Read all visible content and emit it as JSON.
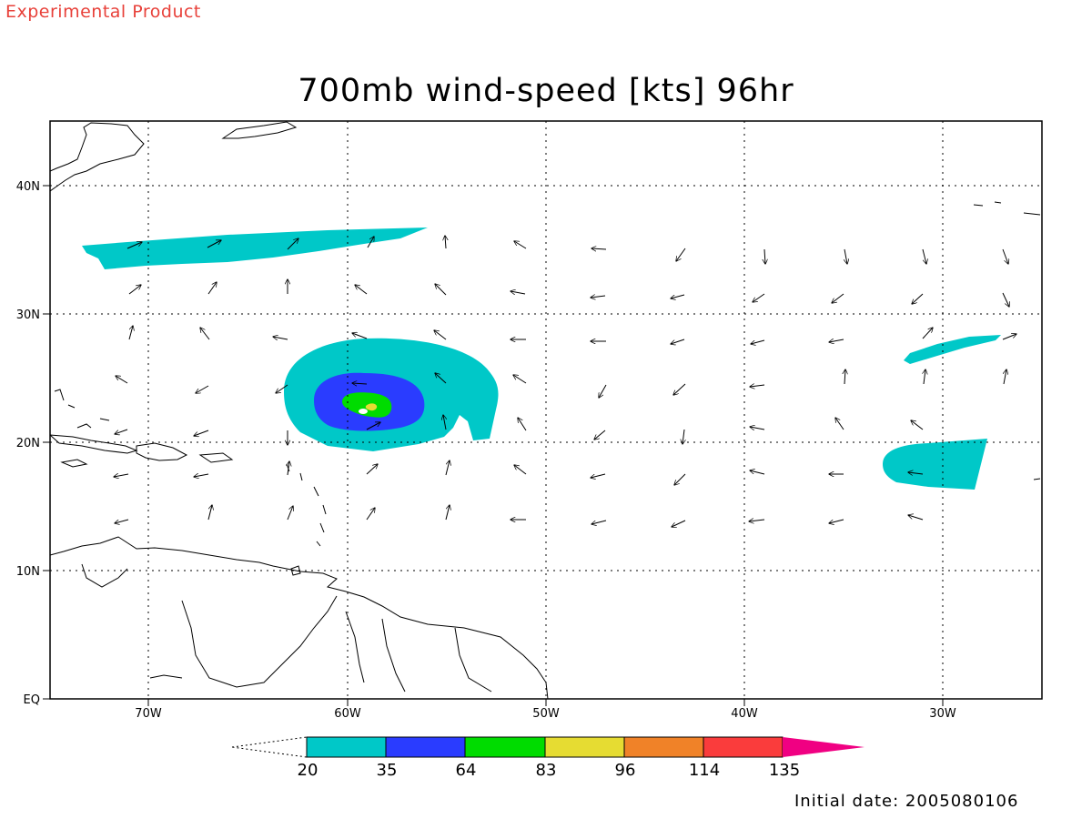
{
  "header": {
    "watermark": "Experimental Product",
    "title": "700mb wind-speed [kts] 96hr"
  },
  "axes": {
    "lon_labels": [
      "70W",
      "60W",
      "50W",
      "40W",
      "30W"
    ],
    "lat_labels": [
      "EQ",
      "10N",
      "20N",
      "30N",
      "40N"
    ],
    "lon_range": [
      -75,
      -25
    ],
    "lat_range": [
      0,
      45
    ],
    "grid": "dotted"
  },
  "colorbar": {
    "ticks": [
      "20",
      "35",
      "64",
      "83",
      "96",
      "114",
      "135"
    ],
    "colors": [
      "#00c8c8",
      "#2a3cff",
      "#00dc00",
      "#e6dc32",
      "#f08228",
      "#fa3c3c",
      "#f00082"
    ],
    "below_min": "unfilled"
  },
  "footer": {
    "initial_date": "Initial date: 2005080106"
  }
}
